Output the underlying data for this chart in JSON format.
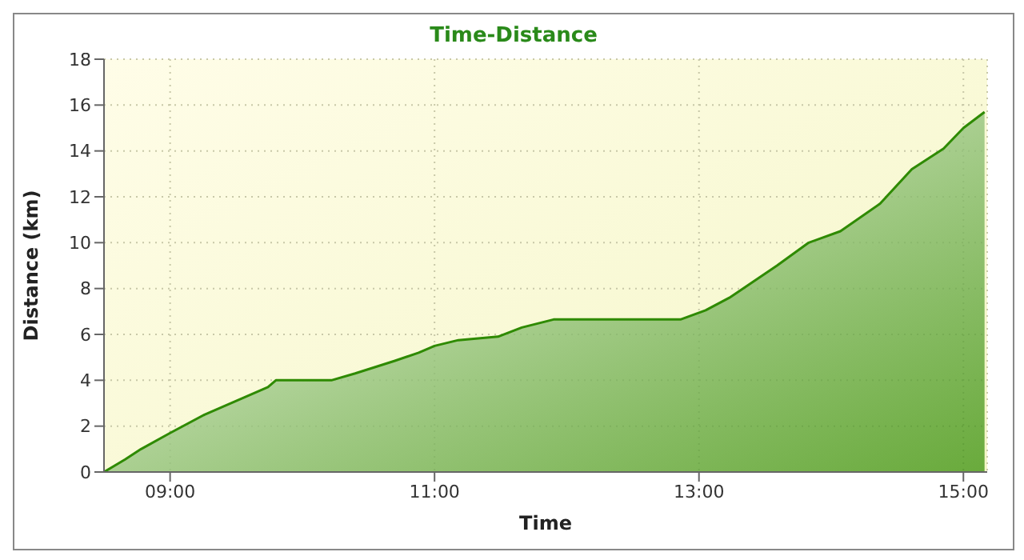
{
  "chart_data": {
    "type": "area",
    "title": "Time-Distance",
    "xlabel": "Time",
    "ylabel": "Distance (km)",
    "x": [
      8.5,
      8.66,
      8.78,
      9.0,
      9.26,
      9.5,
      9.74,
      9.8,
      10.22,
      10.4,
      10.7,
      10.88,
      11.0,
      11.18,
      11.48,
      11.66,
      11.9,
      12.86,
      13.05,
      13.23,
      13.59,
      13.83,
      14.07,
      14.37,
      14.61,
      14.85,
      15.0,
      15.16
    ],
    "series": [
      {
        "color": "#2e8a00",
        "values": [
          0,
          0.55,
          1.0,
          1.7,
          2.5,
          3.1,
          3.7,
          4.0,
          4.0,
          4.3,
          4.85,
          5.2,
          5.5,
          5.75,
          5.9,
          6.3,
          6.65,
          6.65,
          7.05,
          7.6,
          9.0,
          10.0,
          10.5,
          11.7,
          13.2,
          14.1,
          15.0,
          15.7
        ]
      }
    ],
    "xlim": [
      8.5,
      15.18
    ],
    "xticks": [
      {
        "value": 9,
        "label": "09:00"
      },
      {
        "value": 11,
        "label": "11:00"
      },
      {
        "value": 13,
        "label": "13:00"
      },
      {
        "value": 15,
        "label": "15:00"
      }
    ],
    "ylim": [
      0,
      18
    ],
    "yticks": [
      0,
      2,
      4,
      6,
      8,
      10,
      12,
      14,
      16,
      18
    ],
    "grid": true,
    "marker": "none",
    "line_style": "solid"
  }
}
